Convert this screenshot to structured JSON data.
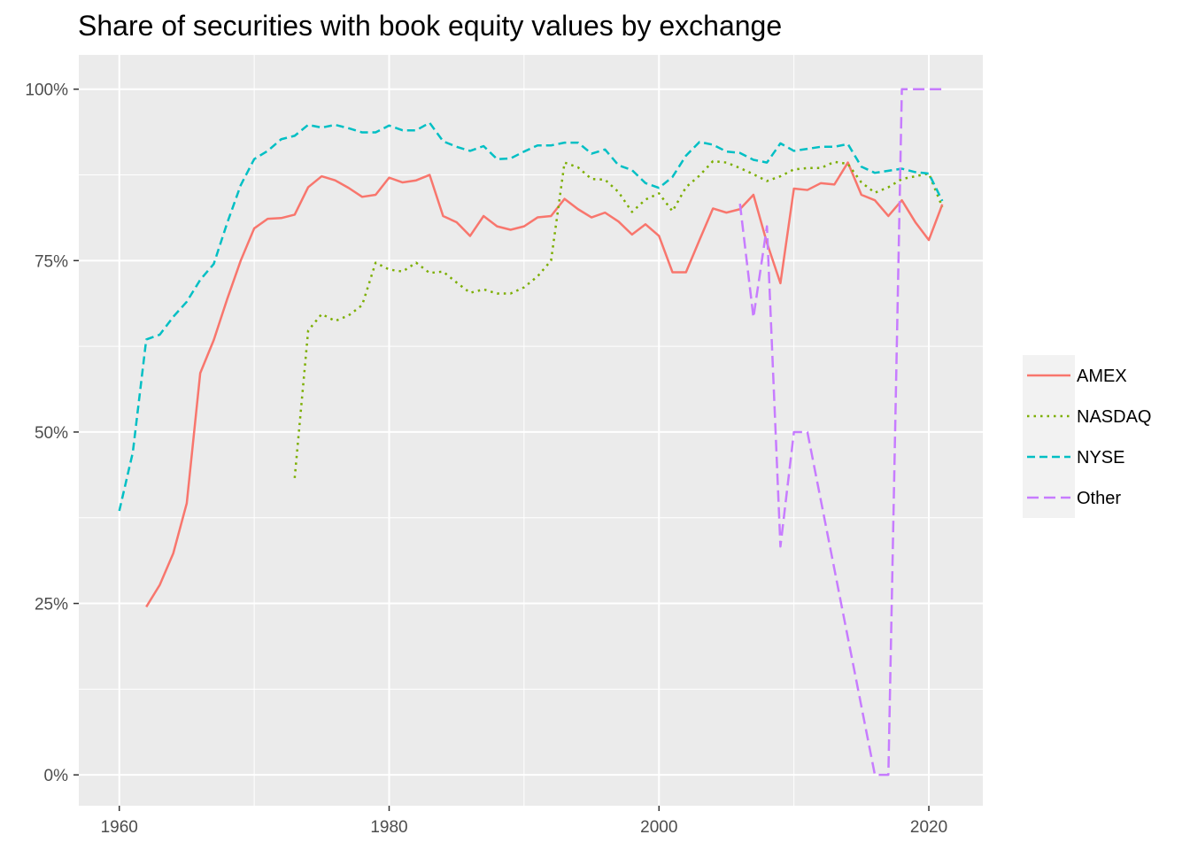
{
  "chart_data": {
    "type": "line",
    "title": "Share of securities with book equity values by exchange",
    "xlabel": "",
    "ylabel": "",
    "xlim": [
      1957,
      2024
    ],
    "ylim": [
      -0.045,
      1.05
    ],
    "x_ticks": [
      1960,
      1980,
      2000,
      2020
    ],
    "y_ticks": [
      0,
      0.25,
      0.5,
      0.75,
      1.0
    ],
    "y_tick_labels": [
      "0%",
      "25%",
      "50%",
      "75%",
      "100%"
    ],
    "grid": true,
    "legend_position": "right",
    "background": "#ebebeb",
    "series": [
      {
        "name": "AMEX",
        "color": "#f8766d",
        "dash": "solid",
        "points": [
          [
            1962,
            0.245
          ],
          [
            1963,
            0.277
          ],
          [
            1964,
            0.323
          ],
          [
            1965,
            0.396
          ],
          [
            1966,
            0.586
          ],
          [
            1967,
            0.634
          ],
          [
            1968,
            0.694
          ],
          [
            1969,
            0.75
          ],
          [
            1970,
            0.797
          ],
          [
            1971,
            0.811
          ],
          [
            1972,
            0.812
          ],
          [
            1973,
            0.817
          ],
          [
            1974,
            0.857
          ],
          [
            1975,
            0.873
          ],
          [
            1976,
            0.867
          ],
          [
            1977,
            0.856
          ],
          [
            1978,
            0.843
          ],
          [
            1979,
            0.846
          ],
          [
            1980,
            0.871
          ],
          [
            1981,
            0.864
          ],
          [
            1982,
            0.867
          ],
          [
            1983,
            0.875
          ],
          [
            1984,
            0.815
          ],
          [
            1985,
            0.806
          ],
          [
            1986,
            0.786
          ],
          [
            1987,
            0.815
          ],
          [
            1988,
            0.8
          ],
          [
            1989,
            0.795
          ],
          [
            1990,
            0.8
          ],
          [
            1991,
            0.813
          ],
          [
            1992,
            0.815
          ],
          [
            1993,
            0.84
          ],
          [
            1994,
            0.825
          ],
          [
            1995,
            0.813
          ],
          [
            1996,
            0.82
          ],
          [
            1997,
            0.807
          ],
          [
            1998,
            0.788
          ],
          [
            1999,
            0.803
          ],
          [
            2000,
            0.786
          ],
          [
            2001,
            0.733
          ],
          [
            2002,
            0.733
          ],
          [
            2003,
            0.78
          ],
          [
            2004,
            0.826
          ],
          [
            2005,
            0.82
          ],
          [
            2006,
            0.825
          ],
          [
            2007,
            0.846
          ],
          [
            2008,
            0.776
          ],
          [
            2009,
            0.717
          ],
          [
            2010,
            0.855
          ],
          [
            2011,
            0.853
          ],
          [
            2012,
            0.863
          ],
          [
            2013,
            0.861
          ],
          [
            2014,
            0.893
          ],
          [
            2015,
            0.846
          ],
          [
            2016,
            0.838
          ],
          [
            2017,
            0.815
          ],
          [
            2018,
            0.838
          ],
          [
            2019,
            0.806
          ],
          [
            2020,
            0.78
          ],
          [
            2021,
            0.832
          ]
        ]
      },
      {
        "name": "NASDAQ",
        "color": "#7cae00",
        "dash": "dotted",
        "points": [
          [
            1973,
            0.433
          ],
          [
            1974,
            0.648
          ],
          [
            1975,
            0.672
          ],
          [
            1976,
            0.662
          ],
          [
            1977,
            0.67
          ],
          [
            1978,
            0.685
          ],
          [
            1979,
            0.747
          ],
          [
            1980,
            0.737
          ],
          [
            1981,
            0.734
          ],
          [
            1982,
            0.747
          ],
          [
            1983,
            0.732
          ],
          [
            1984,
            0.734
          ],
          [
            1985,
            0.718
          ],
          [
            1986,
            0.703
          ],
          [
            1987,
            0.708
          ],
          [
            1988,
            0.702
          ],
          [
            1989,
            0.702
          ],
          [
            1990,
            0.711
          ],
          [
            1991,
            0.727
          ],
          [
            1992,
            0.75
          ],
          [
            1993,
            0.893
          ],
          [
            1994,
            0.886
          ],
          [
            1995,
            0.869
          ],
          [
            1996,
            0.868
          ],
          [
            1997,
            0.85
          ],
          [
            1998,
            0.821
          ],
          [
            1999,
            0.839
          ],
          [
            2000,
            0.848
          ],
          [
            2001,
            0.822
          ],
          [
            2002,
            0.857
          ],
          [
            2003,
            0.874
          ],
          [
            2004,
            0.895
          ],
          [
            2005,
            0.893
          ],
          [
            2006,
            0.885
          ],
          [
            2007,
            0.876
          ],
          [
            2008,
            0.866
          ],
          [
            2009,
            0.873
          ],
          [
            2010,
            0.883
          ],
          [
            2011,
            0.885
          ],
          [
            2012,
            0.885
          ],
          [
            2013,
            0.894
          ],
          [
            2014,
            0.891
          ],
          [
            2015,
            0.864
          ],
          [
            2016,
            0.849
          ],
          [
            2017,
            0.857
          ],
          [
            2018,
            0.869
          ],
          [
            2019,
            0.873
          ],
          [
            2020,
            0.877
          ],
          [
            2021,
            0.828
          ]
        ]
      },
      {
        "name": "NYSE",
        "color": "#00bfc4",
        "dash": "dashed",
        "points": [
          [
            1960,
            0.385
          ],
          [
            1961,
            0.47
          ],
          [
            1962,
            0.635
          ],
          [
            1963,
            0.642
          ],
          [
            1964,
            0.668
          ],
          [
            1965,
            0.69
          ],
          [
            1966,
            0.722
          ],
          [
            1967,
            0.745
          ],
          [
            1968,
            0.805
          ],
          [
            1969,
            0.86
          ],
          [
            1970,
            0.898
          ],
          [
            1971,
            0.91
          ],
          [
            1972,
            0.927
          ],
          [
            1973,
            0.932
          ],
          [
            1974,
            0.948
          ],
          [
            1975,
            0.944
          ],
          [
            1976,
            0.948
          ],
          [
            1977,
            0.943
          ],
          [
            1978,
            0.937
          ],
          [
            1979,
            0.937
          ],
          [
            1980,
            0.947
          ],
          [
            1981,
            0.94
          ],
          [
            1982,
            0.94
          ],
          [
            1983,
            0.951
          ],
          [
            1984,
            0.924
          ],
          [
            1985,
            0.916
          ],
          [
            1986,
            0.91
          ],
          [
            1987,
            0.917
          ],
          [
            1988,
            0.898
          ],
          [
            1989,
            0.899
          ],
          [
            1990,
            0.909
          ],
          [
            1991,
            0.918
          ],
          [
            1992,
            0.918
          ],
          [
            1993,
            0.922
          ],
          [
            1994,
            0.922
          ],
          [
            1995,
            0.906
          ],
          [
            1996,
            0.912
          ],
          [
            1997,
            0.889
          ],
          [
            1998,
            0.882
          ],
          [
            1999,
            0.863
          ],
          [
            2000,
            0.856
          ],
          [
            2001,
            0.872
          ],
          [
            2002,
            0.903
          ],
          [
            2003,
            0.923
          ],
          [
            2004,
            0.919
          ],
          [
            2005,
            0.909
          ],
          [
            2006,
            0.907
          ],
          [
            2007,
            0.897
          ],
          [
            2008,
            0.893
          ],
          [
            2009,
            0.921
          ],
          [
            2010,
            0.91
          ],
          [
            2011,
            0.913
          ],
          [
            2012,
            0.916
          ],
          [
            2013,
            0.916
          ],
          [
            2014,
            0.92
          ],
          [
            2015,
            0.887
          ],
          [
            2016,
            0.878
          ],
          [
            2017,
            0.881
          ],
          [
            2018,
            0.884
          ],
          [
            2019,
            0.879
          ],
          [
            2020,
            0.877
          ],
          [
            2021,
            0.837
          ]
        ]
      },
      {
        "name": "Other",
        "color": "#c77cff",
        "dash": "longdash",
        "points": [
          [
            2006,
            0.833
          ],
          [
            2007,
            0.667
          ],
          [
            2008,
            0.8
          ],
          [
            2009,
            0.333
          ],
          [
            2010,
            0.5
          ],
          [
            2011,
            0.5
          ],
          [
            2016,
            0.0
          ],
          [
            2017,
            0.0
          ],
          [
            2018,
            1.0
          ],
          [
            2019,
            1.0
          ],
          [
            2020,
            1.0
          ],
          [
            2021,
            1.0
          ]
        ]
      }
    ]
  }
}
